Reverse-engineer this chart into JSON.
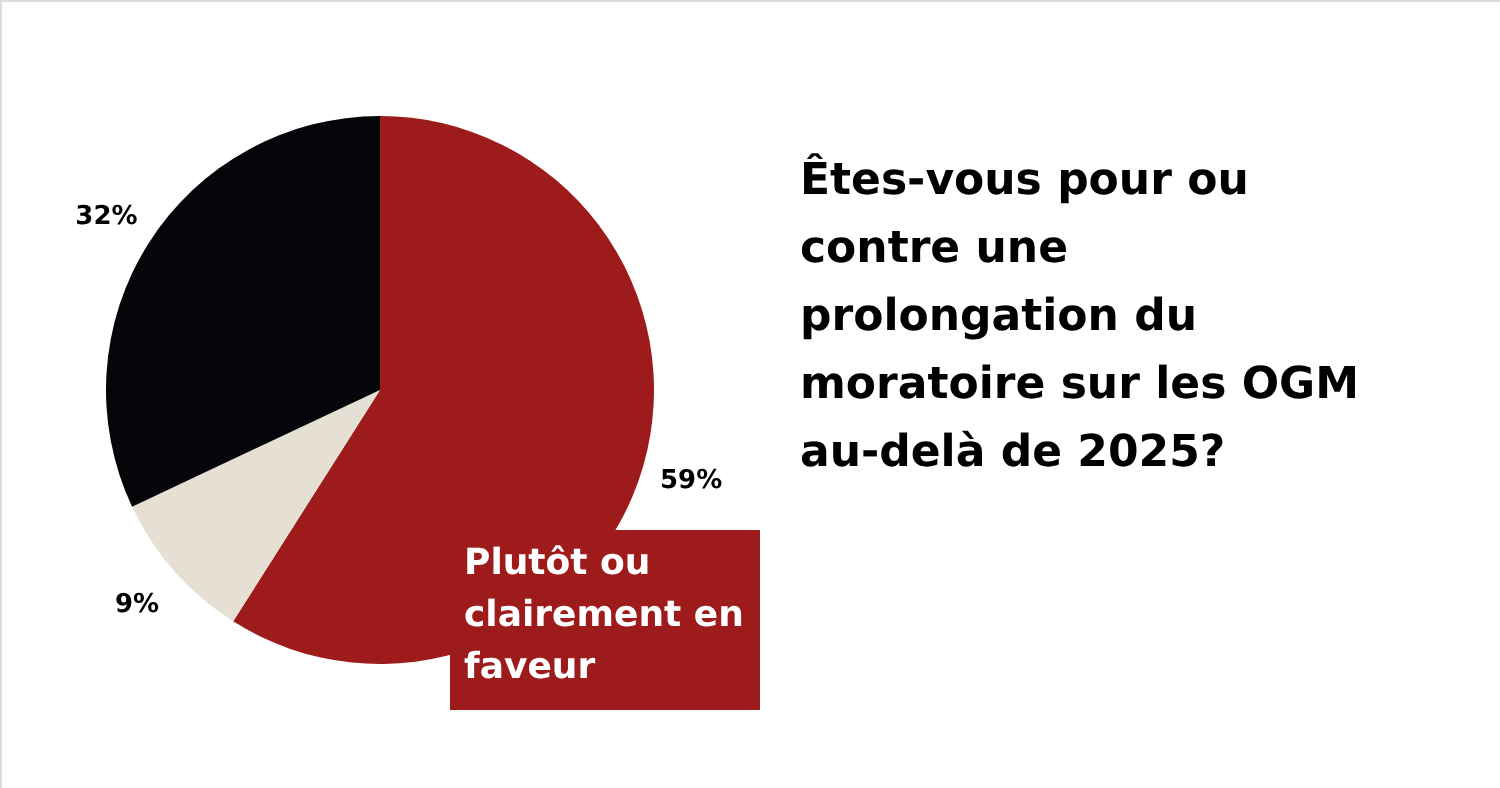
{
  "chart_data": {
    "type": "pie",
    "title": "Êtes-vous pour ou contre une prolongation du moratoire sur les OGM au-delà de 2025?",
    "categories": [
      "Plutôt ou clairement en faveur",
      null,
      null
    ],
    "values": [
      59,
      9,
      32
    ],
    "colors": [
      "#9e1b1b",
      "#e6e0d4",
      "#05060a"
    ],
    "value_labels": [
      "59%",
      "9%",
      "32%"
    ]
  }
}
